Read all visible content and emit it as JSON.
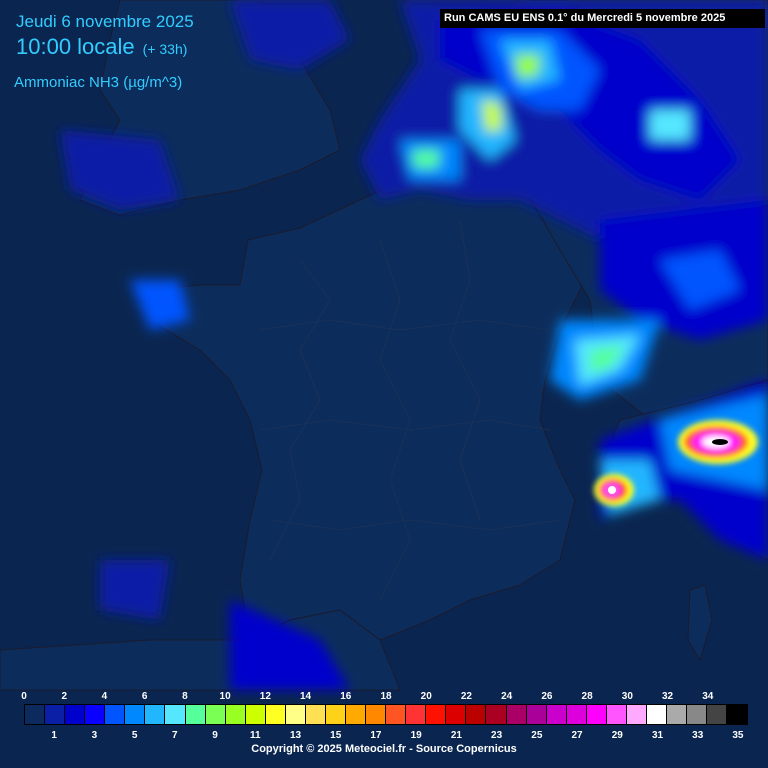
{
  "header": {
    "date_label": "Jeudi 6 novembre 2025",
    "time_label": "10:00 locale",
    "lead_label": "(+ 33h)",
    "parameter_label": "Ammoniac NH3 (µg/m^3)"
  },
  "run_label": "Run CAMS EU ENS 0.1° du Mercredi 5 novembre 2025",
  "legend": {
    "top_ticks": [
      "0",
      "2",
      "4",
      "6",
      "8",
      "10",
      "12",
      "14",
      "16",
      "18",
      "20",
      "22",
      "24",
      "26",
      "28",
      "30",
      "32",
      "34"
    ],
    "bottom_ticks": [
      "1",
      "3",
      "5",
      "7",
      "9",
      "11",
      "13",
      "15",
      "17",
      "19",
      "21",
      "23",
      "25",
      "27",
      "29",
      "31",
      "33",
      "35"
    ],
    "colors": [
      "#0c2a5e",
      "#0a1fa6",
      "#0000cc",
      "#0a00ff",
      "#0055ff",
      "#0088ff",
      "#22b6ff",
      "#55e7ff",
      "#55ff9a",
      "#7aff55",
      "#99ff22",
      "#ccff00",
      "#ffff22",
      "#ffff88",
      "#ffe055",
      "#ffd21a",
      "#ffaa00",
      "#ff8800",
      "#ff5522",
      "#ff3333",
      "#ff1100",
      "#dd0000",
      "#bb0000",
      "#aa0022",
      "#aa0066",
      "#aa0099",
      "#cc00cc",
      "#dd00dd",
      "#ff00ff",
      "#ff55ff",
      "#ffaaff",
      "#ffffff",
      "#aaaaaa",
      "#888888",
      "#444444",
      "#000000"
    ]
  },
  "copyright": "Copyright © 2025 Meteociel.fr - Source Copernicus"
}
